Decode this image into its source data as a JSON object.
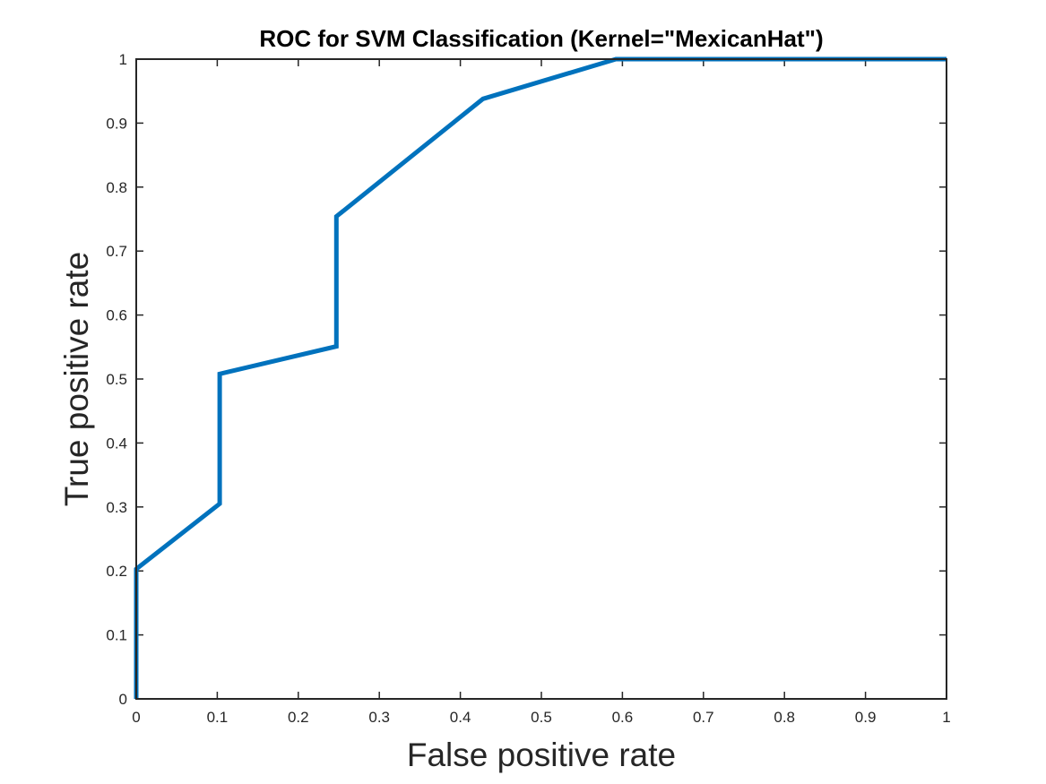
{
  "chart_data": {
    "type": "line",
    "title": "ROC for SVM Classification (Kernel=\"MexicanHat\")",
    "xlabel": "False positive rate",
    "ylabel": "True positive rate",
    "xlim": [
      0,
      1
    ],
    "ylim": [
      0,
      1
    ],
    "x_ticks": [
      "0",
      "0.1",
      "0.2",
      "0.3",
      "0.4",
      "0.5",
      "0.6",
      "0.7",
      "0.8",
      "0.9",
      "1"
    ],
    "y_ticks": [
      "0",
      "0.1",
      "0.2",
      "0.3",
      "0.4",
      "0.5",
      "0.6",
      "0.7",
      "0.8",
      "0.9",
      "1"
    ],
    "grid": false,
    "box": true,
    "series": [
      {
        "color": "#0072bd",
        "x": [
          0,
          0,
          0.103,
          0.103,
          0.247,
          0.247,
          0.428,
          0.592,
          1
        ],
        "y": [
          0,
          0.203,
          0.305,
          0.508,
          0.551,
          0.754,
          0.938,
          1,
          1
        ]
      }
    ]
  }
}
